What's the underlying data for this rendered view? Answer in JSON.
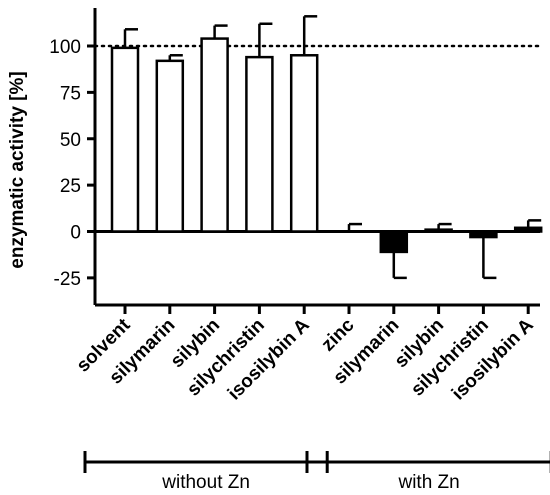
{
  "chart_data": {
    "type": "bar",
    "ylabel": "enzymatic activity [%]",
    "ylim": [
      -40,
      115
    ],
    "yticks": [
      "-25",
      "0",
      "25",
      "50",
      "75",
      "100"
    ],
    "yticks_values": [
      -25,
      0,
      25,
      50,
      75,
      100
    ],
    "reference_line": 100,
    "categories": [
      "solvent",
      "silymarin",
      "silybin",
      "silychristin",
      "isosilybin A",
      "zinc",
      "silymarin",
      "silybin",
      "silychristin",
      "isosilybin A"
    ],
    "values": [
      99,
      92,
      104,
      94,
      95,
      0,
      -11,
      1,
      -3,
      2
    ],
    "errors": [
      10,
      3,
      7,
      18,
      21,
      4,
      14,
      3,
      22,
      4
    ],
    "fills": [
      "#ffffff",
      "#ffffff",
      "#ffffff",
      "#ffffff",
      "#ffffff",
      "#ffffff",
      "#000000",
      "#ffffff",
      "#000000",
      "#000000"
    ],
    "groups": [
      {
        "label": "without Zn",
        "start": 0,
        "end": 4
      },
      {
        "label": "with Zn",
        "start": 5,
        "end": 9
      }
    ]
  }
}
